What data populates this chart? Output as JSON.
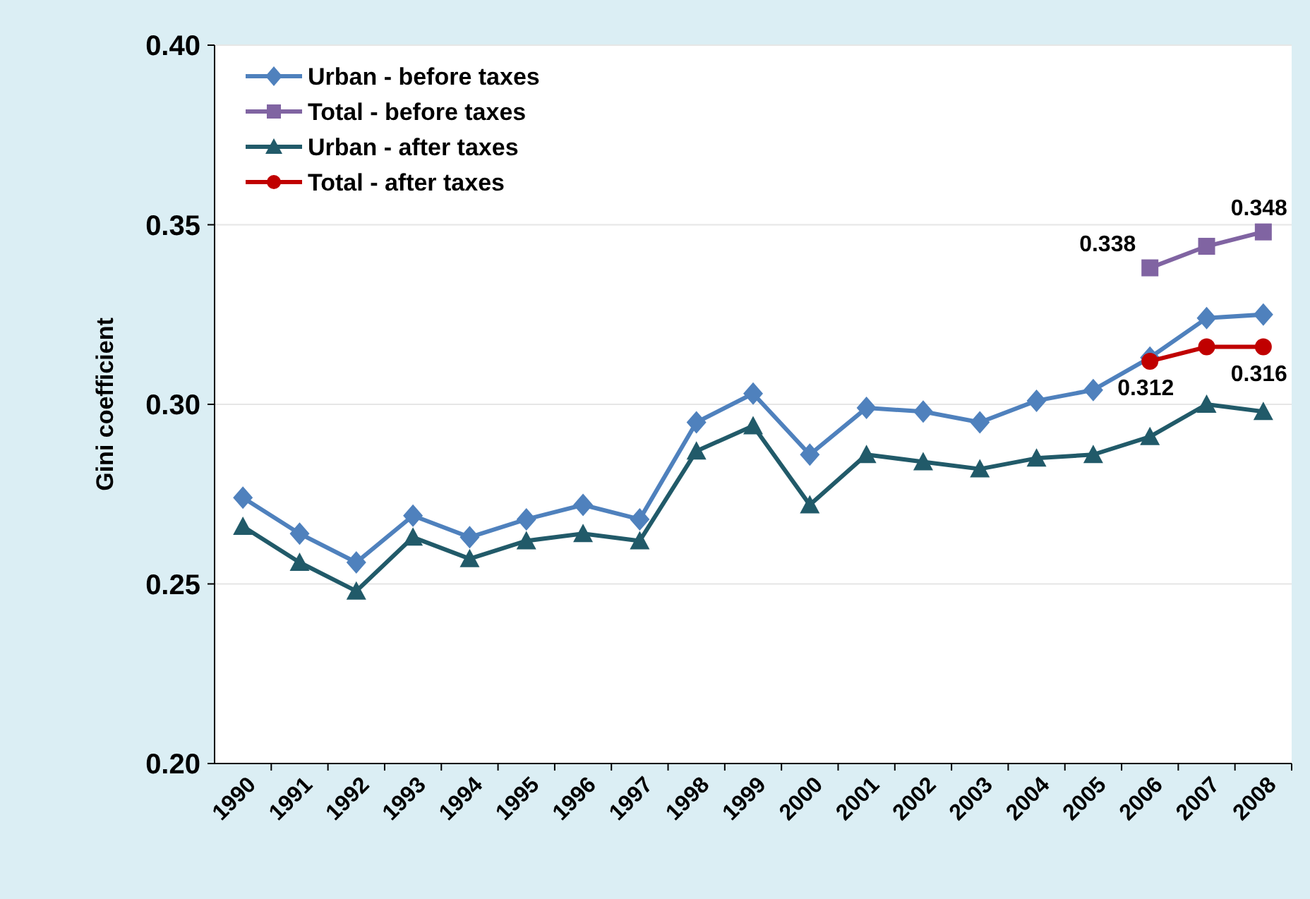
{
  "chart_data": {
    "type": "line",
    "ylabel": "Gini coefficient",
    "categories": [
      "1990",
      "1991",
      "1992",
      "1993",
      "1994",
      "1995",
      "1996",
      "1997",
      "1998",
      "1999",
      "2000",
      "2001",
      "2002",
      "2003",
      "2004",
      "2005",
      "2006",
      "2007",
      "2008"
    ],
    "ylim": [
      0.2,
      0.4
    ],
    "yticks": [
      "0.20",
      "0.25",
      "0.30",
      "0.35",
      "0.40"
    ],
    "grid": "y",
    "legend": "top left",
    "series": [
      {
        "name": "Urban - before taxes",
        "color": "#4f81bd",
        "marker": "diamond",
        "values": [
          0.274,
          0.264,
          0.256,
          0.269,
          0.263,
          0.268,
          0.272,
          0.268,
          0.295,
          0.303,
          0.286,
          0.299,
          0.298,
          0.295,
          0.301,
          0.304,
          0.313,
          0.324,
          0.325
        ]
      },
      {
        "name": "Total - before taxes",
        "color": "#8064a2",
        "marker": "square",
        "values": [
          null,
          null,
          null,
          null,
          null,
          null,
          null,
          null,
          null,
          null,
          null,
          null,
          null,
          null,
          null,
          null,
          0.338,
          0.344,
          0.348
        ],
        "value_labels": [
          null,
          null,
          null,
          null,
          null,
          null,
          null,
          null,
          null,
          null,
          null,
          null,
          null,
          null,
          null,
          null,
          "0.338",
          null,
          "0.348"
        ]
      },
      {
        "name": "Urban - after taxes",
        "color": "#215a69",
        "marker": "triangle",
        "values": [
          0.266,
          0.256,
          0.248,
          0.263,
          0.257,
          0.262,
          0.264,
          0.262,
          0.287,
          0.294,
          0.272,
          0.286,
          0.284,
          0.282,
          0.285,
          0.286,
          0.291,
          0.3,
          0.298
        ]
      },
      {
        "name": "Total - after taxes",
        "color": "#c00000",
        "marker": "circle",
        "values": [
          null,
          null,
          null,
          null,
          null,
          null,
          null,
          null,
          null,
          null,
          null,
          null,
          null,
          null,
          null,
          null,
          0.312,
          0.316,
          0.316
        ],
        "value_labels": [
          null,
          null,
          null,
          null,
          null,
          null,
          null,
          null,
          null,
          null,
          null,
          null,
          null,
          null,
          null,
          null,
          "0.312",
          null,
          "0.316"
        ]
      }
    ]
  }
}
